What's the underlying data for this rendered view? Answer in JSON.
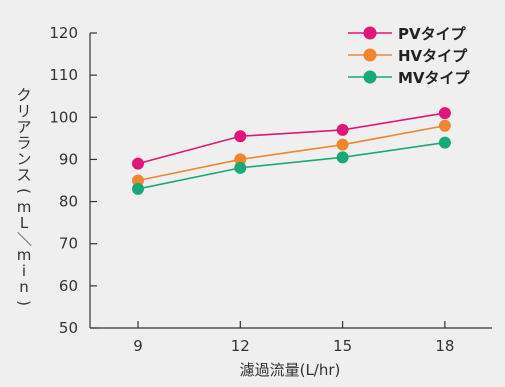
{
  "chart_data": {
    "type": "line",
    "x": [
      9,
      12,
      15,
      18
    ],
    "series": [
      {
        "name": "PVタイプ",
        "color": "#e0177a",
        "values": [
          89,
          95.5,
          97,
          101
        ]
      },
      {
        "name": "HVタイプ",
        "color": "#f08532",
        "values": [
          85,
          90,
          93.5,
          98
        ]
      },
      {
        "name": "MVタイプ",
        "color": "#1aa878",
        "values": [
          83,
          88,
          90.5,
          94
        ]
      }
    ],
    "xlabel": "濾過流量(L/hr)",
    "ylabel": "クリアランス(mL/min)",
    "ylim": [
      50,
      120
    ],
    "yticks": [
      50,
      60,
      70,
      80,
      90,
      100,
      110,
      120
    ],
    "xticks": [
      "9",
      "12",
      "15",
      "18"
    ],
    "grid": false,
    "legend_position": "top-right"
  }
}
